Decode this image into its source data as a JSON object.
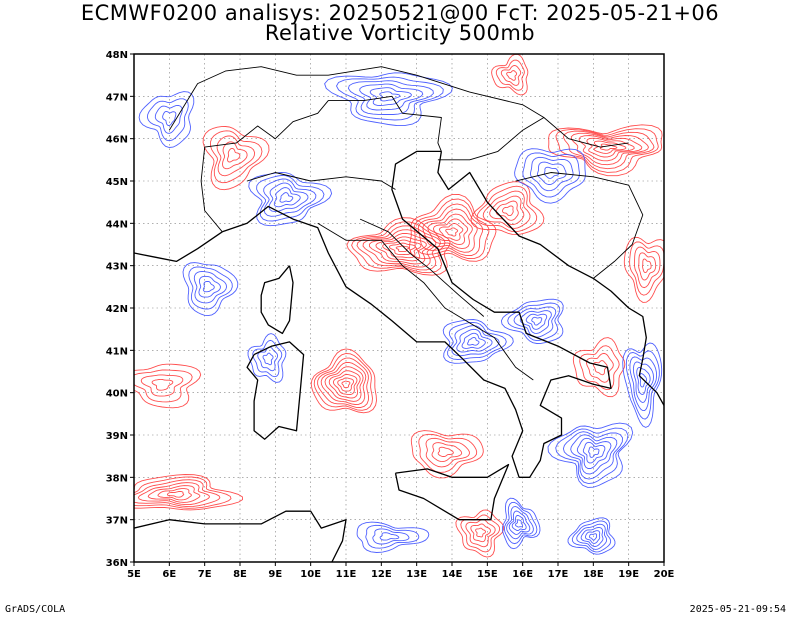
{
  "title_line1": "ECMWF0200 analisys: 20250521@00 FcT: 2025-05-21+06",
  "title_line2": "Relative Vorticity 500mb",
  "footer_left": "GrADS/COLA",
  "footer_right": "2025-05-21-09:54",
  "map": {
    "lon_range": [
      5,
      20
    ],
    "lat_range": [
      36,
      48
    ],
    "lon_ticks": [
      "5E",
      "6E",
      "7E",
      "8E",
      "9E",
      "10E",
      "11E",
      "12E",
      "13E",
      "14E",
      "15E",
      "16E",
      "17E",
      "18E",
      "19E",
      "20E"
    ],
    "lat_ticks": [
      "36N",
      "37N",
      "38N",
      "39N",
      "40N",
      "41N",
      "42N",
      "43N",
      "44N",
      "45N",
      "46N",
      "47N",
      "48N"
    ],
    "colors": {
      "positive_vorticity": "#ff3c3c",
      "negative_vorticity": "#3c50ff",
      "coastline": "#000000",
      "grid": "#7f7f7f"
    },
    "contour_sources": [
      {
        "sign": "pos",
        "lon": 11.0,
        "lat": 40.2,
        "levels": 9,
        "rx": 0.9,
        "ry": 0.7
      },
      {
        "sign": "pos",
        "lon": 12.6,
        "lat": 43.4,
        "levels": 9,
        "rx": 1.4,
        "ry": 0.6
      },
      {
        "sign": "pos",
        "lon": 14.0,
        "lat": 43.8,
        "levels": 8,
        "rx": 1.2,
        "ry": 0.7
      },
      {
        "sign": "pos",
        "lon": 15.6,
        "lat": 44.3,
        "levels": 6,
        "rx": 0.9,
        "ry": 0.6
      },
      {
        "sign": "pos",
        "lon": 6.2,
        "lat": 37.6,
        "levels": 7,
        "rx": 1.6,
        "ry": 0.4
      },
      {
        "sign": "pos",
        "lon": 18.4,
        "lat": 45.8,
        "levels": 8,
        "rx": 1.6,
        "ry": 0.5
      },
      {
        "sign": "pos",
        "lon": 7.8,
        "lat": 45.6,
        "levels": 5,
        "rx": 0.8,
        "ry": 0.7
      },
      {
        "sign": "pos",
        "lon": 5.8,
        "lat": 40.2,
        "levels": 4,
        "rx": 1.0,
        "ry": 0.5
      },
      {
        "sign": "pos",
        "lon": 13.8,
        "lat": 38.6,
        "levels": 5,
        "rx": 1.0,
        "ry": 0.5
      },
      {
        "sign": "pos",
        "lon": 18.2,
        "lat": 40.6,
        "levels": 4,
        "rx": 0.7,
        "ry": 0.6
      },
      {
        "sign": "pos",
        "lon": 14.8,
        "lat": 36.7,
        "levels": 5,
        "rx": 0.6,
        "ry": 0.5
      },
      {
        "sign": "pos",
        "lon": 19.5,
        "lat": 43.0,
        "levels": 5,
        "rx": 0.6,
        "ry": 0.7
      },
      {
        "sign": "pos",
        "lon": 15.7,
        "lat": 47.5,
        "levels": 4,
        "rx": 0.5,
        "ry": 0.4
      },
      {
        "sign": "neg",
        "lon": 7.1,
        "lat": 42.5,
        "levels": 5,
        "rx": 0.7,
        "ry": 0.6
      },
      {
        "sign": "neg",
        "lon": 9.3,
        "lat": 44.6,
        "levels": 6,
        "rx": 1.0,
        "ry": 0.6
      },
      {
        "sign": "neg",
        "lon": 14.6,
        "lat": 41.2,
        "levels": 6,
        "rx": 0.9,
        "ry": 0.5
      },
      {
        "sign": "neg",
        "lon": 16.4,
        "lat": 41.7,
        "levels": 6,
        "rx": 0.8,
        "ry": 0.5
      },
      {
        "sign": "neg",
        "lon": 19.4,
        "lat": 40.3,
        "levels": 6,
        "rx": 0.5,
        "ry": 0.9
      },
      {
        "sign": "neg",
        "lon": 18.0,
        "lat": 38.6,
        "levels": 7,
        "rx": 1.0,
        "ry": 0.7
      },
      {
        "sign": "neg",
        "lon": 15.9,
        "lat": 36.9,
        "levels": 6,
        "rx": 0.5,
        "ry": 0.5
      },
      {
        "sign": "neg",
        "lon": 18.0,
        "lat": 36.6,
        "levels": 6,
        "rx": 0.6,
        "ry": 0.4
      },
      {
        "sign": "neg",
        "lon": 12.2,
        "lat": 47.0,
        "levels": 6,
        "rx": 1.5,
        "ry": 0.6
      },
      {
        "sign": "neg",
        "lon": 16.8,
        "lat": 45.2,
        "levels": 5,
        "rx": 1.0,
        "ry": 0.6
      },
      {
        "sign": "neg",
        "lon": 8.8,
        "lat": 40.8,
        "levels": 4,
        "rx": 0.5,
        "ry": 0.5
      },
      {
        "sign": "neg",
        "lon": 6.0,
        "lat": 46.5,
        "levels": 4,
        "rx": 0.7,
        "ry": 0.6
      },
      {
        "sign": "neg",
        "lon": 12.2,
        "lat": 36.6,
        "levels": 4,
        "rx": 1.0,
        "ry": 0.3
      }
    ],
    "coastlines": [
      {
        "name": "italian-peninsula",
        "points": [
          [
            7.5,
            43.8
          ],
          [
            8.2,
            44.0
          ],
          [
            8.8,
            44.4
          ],
          [
            9.5,
            44.1
          ],
          [
            10.2,
            43.9
          ],
          [
            10.5,
            43.3
          ],
          [
            11.0,
            42.5
          ],
          [
            11.7,
            42.1
          ],
          [
            12.3,
            41.7
          ],
          [
            13.0,
            41.2
          ],
          [
            13.8,
            41.2
          ],
          [
            14.3,
            40.8
          ],
          [
            14.9,
            40.3
          ],
          [
            15.5,
            40.1
          ],
          [
            15.8,
            39.6
          ],
          [
            16.0,
            39.1
          ],
          [
            15.7,
            38.5
          ],
          [
            15.9,
            38.0
          ],
          [
            16.2,
            38.0
          ],
          [
            16.5,
            38.4
          ],
          [
            16.6,
            38.8
          ],
          [
            17.1,
            39.0
          ],
          [
            17.1,
            39.4
          ],
          [
            16.5,
            39.7
          ],
          [
            16.8,
            40.3
          ],
          [
            17.3,
            40.4
          ],
          [
            18.0,
            40.2
          ],
          [
            18.5,
            40.1
          ],
          [
            18.4,
            40.6
          ],
          [
            17.9,
            40.7
          ],
          [
            17.0,
            41.1
          ],
          [
            16.1,
            41.4
          ],
          [
            15.9,
            41.9
          ],
          [
            15.2,
            41.9
          ],
          [
            14.6,
            42.2
          ],
          [
            14.0,
            42.6
          ],
          [
            13.6,
            43.4
          ],
          [
            12.6,
            44.1
          ],
          [
            12.3,
            44.8
          ],
          [
            12.4,
            45.4
          ],
          [
            13.0,
            45.7
          ],
          [
            13.7,
            45.7
          ]
        ]
      },
      {
        "name": "sicily",
        "points": [
          [
            12.4,
            38.1
          ],
          [
            13.3,
            38.2
          ],
          [
            14.0,
            38.0
          ],
          [
            15.0,
            38.0
          ],
          [
            15.6,
            38.3
          ],
          [
            15.2,
            37.5
          ],
          [
            15.1,
            37.0
          ],
          [
            14.2,
            37.0
          ],
          [
            13.2,
            37.5
          ],
          [
            12.5,
            37.7
          ],
          [
            12.4,
            38.1
          ]
        ]
      },
      {
        "name": "sardinia",
        "points": [
          [
            8.4,
            40.9
          ],
          [
            8.9,
            41.1
          ],
          [
            9.4,
            41.2
          ],
          [
            9.8,
            40.9
          ],
          [
            9.7,
            40.0
          ],
          [
            9.6,
            39.1
          ],
          [
            9.1,
            39.2
          ],
          [
            8.7,
            38.9
          ],
          [
            8.4,
            39.1
          ],
          [
            8.4,
            39.8
          ],
          [
            8.5,
            40.3
          ],
          [
            8.2,
            40.6
          ],
          [
            8.4,
            40.9
          ]
        ]
      },
      {
        "name": "corsica",
        "points": [
          [
            9.4,
            43.0
          ],
          [
            9.5,
            42.6
          ],
          [
            9.4,
            41.7
          ],
          [
            9.2,
            41.4
          ],
          [
            8.8,
            41.6
          ],
          [
            8.6,
            41.9
          ],
          [
            8.6,
            42.3
          ],
          [
            8.7,
            42.6
          ],
          [
            9.1,
            42.7
          ],
          [
            9.4,
            43.0
          ]
        ]
      },
      {
        "name": "adriatic-east-coast",
        "points": [
          [
            13.7,
            45.7
          ],
          [
            13.6,
            45.2
          ],
          [
            13.9,
            44.8
          ],
          [
            14.5,
            45.2
          ],
          [
            15.0,
            44.5
          ],
          [
            15.9,
            43.7
          ],
          [
            16.5,
            43.5
          ],
          [
            17.3,
            43.0
          ],
          [
            18.0,
            42.7
          ],
          [
            18.5,
            42.4
          ],
          [
            19.0,
            42.0
          ],
          [
            19.4,
            41.8
          ],
          [
            19.5,
            41.3
          ],
          [
            19.4,
            40.8
          ],
          [
            19.3,
            40.4
          ],
          [
            19.8,
            40.0
          ],
          [
            20.0,
            39.7
          ]
        ]
      },
      {
        "name": "north-africa-coast",
        "points": [
          [
            5.0,
            36.8
          ],
          [
            6.0,
            37.0
          ],
          [
            7.0,
            36.9
          ],
          [
            7.8,
            36.9
          ],
          [
            8.6,
            36.9
          ],
          [
            9.3,
            37.2
          ],
          [
            10.0,
            37.2
          ],
          [
            10.3,
            36.8
          ],
          [
            11.0,
            37.0
          ],
          [
            10.9,
            36.5
          ],
          [
            10.6,
            36.0
          ]
        ]
      },
      {
        "name": "french-riviera",
        "points": [
          [
            5.0,
            43.3
          ],
          [
            5.6,
            43.2
          ],
          [
            6.2,
            43.1
          ],
          [
            6.8,
            43.4
          ],
          [
            7.5,
            43.8
          ]
        ]
      }
    ],
    "borders": [
      {
        "name": "alps-border",
        "points": [
          [
            7.5,
            43.8
          ],
          [
            7.0,
            44.3
          ],
          [
            6.9,
            45.0
          ],
          [
            7.0,
            45.8
          ],
          [
            7.9,
            45.9
          ],
          [
            8.5,
            46.3
          ],
          [
            9.0,
            46.0
          ],
          [
            9.5,
            46.4
          ],
          [
            10.2,
            46.6
          ],
          [
            10.5,
            46.9
          ],
          [
            11.5,
            46.9
          ],
          [
            12.3,
            47.0
          ],
          [
            12.6,
            46.6
          ],
          [
            13.7,
            46.5
          ],
          [
            13.6,
            45.9
          ],
          [
            13.7,
            45.7
          ]
        ]
      },
      {
        "name": "swiss-austria",
        "points": [
          [
            6.0,
            46.2
          ],
          [
            6.8,
            47.3
          ],
          [
            7.6,
            47.6
          ],
          [
            8.6,
            47.7
          ],
          [
            9.6,
            47.5
          ],
          [
            10.5,
            47.5
          ],
          [
            12.0,
            47.7
          ],
          [
            13.0,
            47.5
          ],
          [
            14.5,
            47.1
          ],
          [
            16.0,
            46.8
          ],
          [
            16.6,
            46.5
          ]
        ]
      },
      {
        "name": "slovenia-croatia",
        "points": [
          [
            13.6,
            45.5
          ],
          [
            14.5,
            45.5
          ],
          [
            15.3,
            45.7
          ],
          [
            16.0,
            46.2
          ],
          [
            16.6,
            46.5
          ],
          [
            17.3,
            46.0
          ],
          [
            18.2,
            45.8
          ],
          [
            19.0,
            45.9
          ]
        ]
      },
      {
        "name": "bosnia",
        "points": [
          [
            15.8,
            45.0
          ],
          [
            16.8,
            45.2
          ],
          [
            18.0,
            45.1
          ],
          [
            19.0,
            44.9
          ],
          [
            19.4,
            44.2
          ],
          [
            19.1,
            43.5
          ],
          [
            18.6,
            43.1
          ],
          [
            18.0,
            42.7
          ]
        ]
      },
      {
        "name": "italy-regions-north",
        "points": [
          [
            8.2,
            45.0
          ],
          [
            9.0,
            45.2
          ],
          [
            10.0,
            45.0
          ],
          [
            11.0,
            45.1
          ],
          [
            12.0,
            45.0
          ],
          [
            12.4,
            44.8
          ]
        ]
      },
      {
        "name": "italy-regions-central",
        "points": [
          [
            10.2,
            44.0
          ],
          [
            11.0,
            43.6
          ],
          [
            12.0,
            43.6
          ],
          [
            12.6,
            43.0
          ],
          [
            13.2,
            42.6
          ],
          [
            13.8,
            42.0
          ],
          [
            14.4,
            41.7
          ],
          [
            15.2,
            41.3
          ],
          [
            15.8,
            40.6
          ],
          [
            16.3,
            40.3
          ]
        ]
      },
      {
        "name": "italy-regions-apennine",
        "points": [
          [
            11.4,
            44.1
          ],
          [
            12.2,
            43.8
          ],
          [
            12.8,
            43.3
          ],
          [
            13.4,
            42.9
          ],
          [
            14.2,
            42.3
          ],
          [
            14.9,
            41.8
          ]
        ]
      }
    ]
  }
}
